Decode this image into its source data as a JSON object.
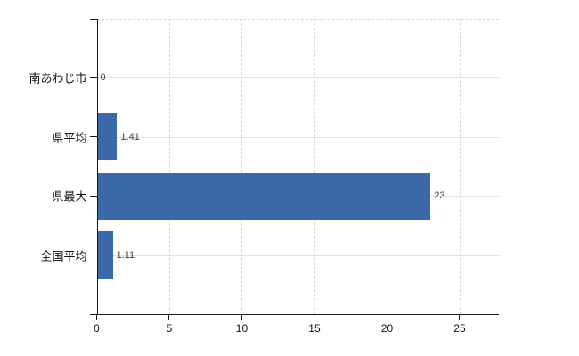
{
  "chart_data": {
    "type": "bar",
    "orientation": "horizontal",
    "title": "",
    "xlabel": "",
    "ylabel": "",
    "categories": [
      "南あわじ市",
      "県平均",
      "県最大",
      "全国平均"
    ],
    "values": [
      0,
      1.41,
      23,
      1.11
    ],
    "value_labels": [
      "0",
      "1.41",
      "23",
      "1.11"
    ],
    "x_ticks": [
      0,
      5,
      10,
      15,
      20,
      25
    ],
    "x_tick_labels": [
      "0",
      "5",
      "10",
      "15",
      "20",
      "25"
    ],
    "xlim": [
      0,
      27.7
    ],
    "grid": true,
    "legend": false,
    "bar_fill_ratio": 0.8,
    "colors": {
      "bar_fill": "#3b68a9",
      "axis": "#1a1a1a",
      "grid_vertical": "#d8d8d8",
      "grid_horizontal": "#dde4dd",
      "plot_top_border": "#d9d4d6",
      "value_label": "#3a3a3a",
      "tick_label": "#111111",
      "background": "#ffffff"
    }
  }
}
